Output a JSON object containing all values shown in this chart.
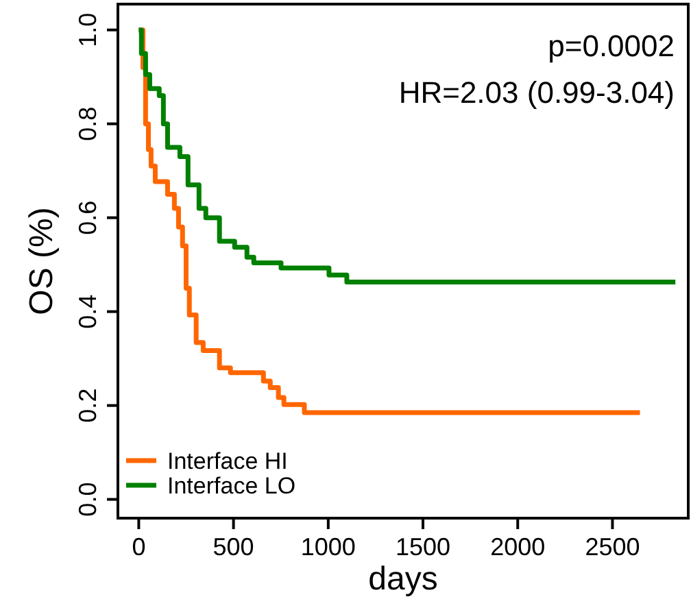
{
  "chart_data": {
    "type": "step",
    "xlabel": "days",
    "ylabel": "OS (%)",
    "xlim": [
      -110,
      2900
    ],
    "ylim": [
      -0.04,
      1.055
    ],
    "xticks": [
      0,
      500,
      1000,
      1500,
      2000,
      2500
    ],
    "yticks": [
      {
        "value": 0,
        "label": "0.0"
      },
      {
        "value": 0.2,
        "label": "0.2"
      },
      {
        "value": 0.4,
        "label": "0.4"
      },
      {
        "value": 0.6,
        "label": "0.6"
      },
      {
        "value": 0.8,
        "label": "0.8"
      },
      {
        "value": 1,
        "label": "1.0"
      }
    ],
    "grid": false,
    "legend": "bottom left",
    "annotations": [
      "p=0.0002",
      "HR=2.03 (0.99-3.04)"
    ],
    "series": [
      {
        "name": "Interface HI",
        "color": "#ff6600",
        "x": [
          0,
          22,
          36,
          51,
          65,
          87,
          152,
          188,
          210,
          231,
          250,
          267,
          303,
          340,
          426,
          484,
          658,
          694,
          737,
          766,
          874,
          2645
        ],
        "values": [
          1,
          0.92,
          0.8,
          0.745,
          0.71,
          0.677,
          0.65,
          0.62,
          0.58,
          0.54,
          0.45,
          0.393,
          0.334,
          0.317,
          0.28,
          0.27,
          0.252,
          0.238,
          0.217,
          0.202,
          0.185,
          0.185
        ]
      },
      {
        "name": "Interface LO",
        "color": "#008000",
        "x": [
          0,
          14,
          36,
          58,
          108,
          130,
          152,
          217,
          260,
          318,
          354,
          426,
          506,
          571,
          607,
          751,
          1004,
          1098,
          2832
        ],
        "values": [
          1,
          0.95,
          0.905,
          0.875,
          0.86,
          0.8,
          0.75,
          0.73,
          0.67,
          0.62,
          0.6,
          0.55,
          0.537,
          0.516,
          0.504,
          0.493,
          0.478,
          0.463,
          0.463
        ]
      }
    ]
  }
}
